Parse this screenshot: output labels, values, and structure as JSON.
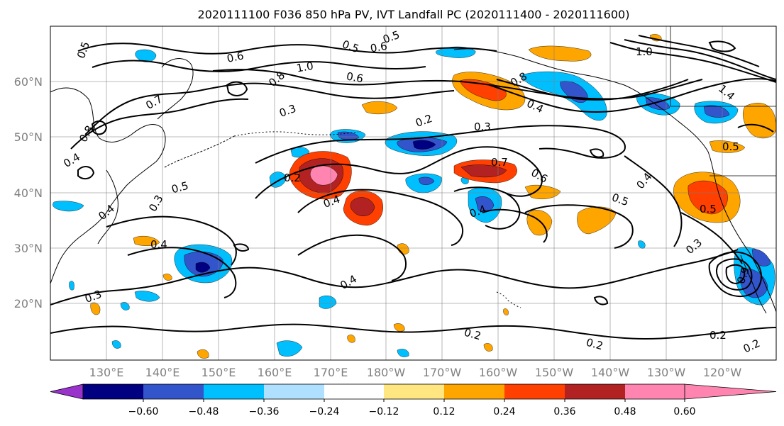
{
  "title": "2020111100 F036 850 hPa PV, IVT Landfall PC (2020111400 - 2020111600)",
  "lat_ticks": [
    "60°N",
    "50°N",
    "40°N",
    "30°N",
    "20°N"
  ],
  "lon_ticks": [
    "130°E",
    "140°E",
    "150°E",
    "160°E",
    "170°E",
    "180°W",
    "170°W",
    "160°W",
    "150°W",
    "140°W",
    "130°W",
    "120°W"
  ],
  "colorbar": {
    "ticks": [
      "−0.60",
      "−0.48",
      "−0.36",
      "−0.24",
      "−0.12",
      "0.12",
      "0.24",
      "0.36",
      "0.48",
      "0.60"
    ],
    "colors": [
      "#9933cc",
      "#000080",
      "#3355cc",
      "#00bfff",
      "#b0e0ff",
      "#ffffff",
      "#ffe680",
      "#ffa500",
      "#ff4000",
      "#b22222",
      "#ff85b0"
    ]
  },
  "contour_labels": [
    {
      "text": "0.5"
    },
    {
      "text": "0.6"
    },
    {
      "text": "0.5"
    },
    {
      "text": "0.6"
    },
    {
      "text": "0.5"
    },
    {
      "text": "0.8"
    },
    {
      "text": "1.0"
    },
    {
      "text": "0.6"
    },
    {
      "text": "1.0"
    },
    {
      "text": "0.3"
    },
    {
      "text": "0.8"
    },
    {
      "text": "0.4"
    },
    {
      "text": "0.7"
    },
    {
      "text": "0.8"
    },
    {
      "text": "0.2"
    },
    {
      "text": "0.3"
    },
    {
      "text": "0.4"
    },
    {
      "text": "0.5"
    },
    {
      "text": "0.3"
    },
    {
      "text": "0.2"
    },
    {
      "text": "0.4"
    },
    {
      "text": "0.7"
    },
    {
      "text": "0.6"
    },
    {
      "text": "0.4"
    },
    {
      "text": "0.5"
    },
    {
      "text": "0.4"
    },
    {
      "text": "0.5"
    },
    {
      "text": "0.5"
    },
    {
      "text": "0.3"
    },
    {
      "text": "0.4"
    },
    {
      "text": "0.3"
    },
    {
      "text": "0.4"
    },
    {
      "text": "0.2"
    },
    {
      "text": "0.2"
    },
    {
      "text": "0.2"
    },
    {
      "text": "0.2"
    },
    {
      "text": "0.9"
    },
    {
      "text": "1.4"
    },
    {
      "text": "0.4"
    }
  ]
}
